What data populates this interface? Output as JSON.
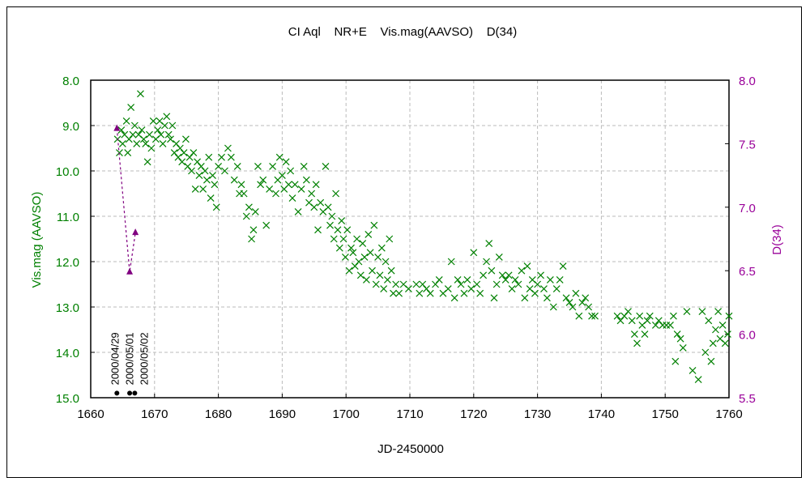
{
  "chart_data": {
    "type": "scatter",
    "title": "CI Aql    NR+E    Vis.mag(AAVSO)    D(34)",
    "xlabel": "JD-2450000",
    "ylabel": "Vis.mag (AAVSO)",
    "y2label": "D(34)",
    "xlim": [
      1660,
      1760
    ],
    "ylim": [
      8.0,
      15.0
    ],
    "y2lim": [
      8.0,
      5.5
    ],
    "xticks": [
      "1660",
      "1670",
      "1680",
      "1690",
      "1700",
      "1710",
      "1720",
      "1730",
      "1740",
      "1750",
      "1760"
    ],
    "yticks": [
      "8.0",
      "9.0",
      "10.0",
      "11.0",
      "12.0",
      "13.0",
      "14.0",
      "15.0"
    ],
    "y2ticks": [
      "8.0",
      "7.5",
      "7.0",
      "6.5",
      "6.0",
      "5.5"
    ],
    "grid": true,
    "colors": {
      "vis": "#008000",
      "d34": "#800080",
      "dates": "#000000",
      "y2axis": "#990099"
    },
    "series": [
      {
        "name": "Vis.mag (AAVSO)",
        "axis": "left",
        "marker": "x",
        "points": [
          [
            1664.2,
            9.3
          ],
          [
            1664.5,
            9.6
          ],
          [
            1664.8,
            9.1
          ],
          [
            1665,
            9.4
          ],
          [
            1665.3,
            9.2
          ],
          [
            1665.6,
            8.9
          ],
          [
            1665.8,
            9.6
          ],
          [
            1666,
            9.3
          ],
          [
            1666.3,
            8.6
          ],
          [
            1666.6,
            9.2
          ],
          [
            1666.9,
            9.0
          ],
          [
            1667.2,
            9.4
          ],
          [
            1667.5,
            9.2
          ],
          [
            1667.8,
            8.3
          ],
          [
            1668,
            9.1
          ],
          [
            1668.3,
            9.3
          ],
          [
            1668.6,
            9.4
          ],
          [
            1668.9,
            9.8
          ],
          [
            1669.2,
            9.2
          ],
          [
            1669.5,
            9.5
          ],
          [
            1669.8,
            8.9
          ],
          [
            1670.2,
            9.3
          ],
          [
            1670.5,
            9.1
          ],
          [
            1670.8,
            8.9
          ],
          [
            1671,
            9.2
          ],
          [
            1671.3,
            9.4
          ],
          [
            1671.6,
            9.0
          ],
          [
            1671.9,
            8.8
          ],
          [
            1672.2,
            9.2
          ],
          [
            1672.5,
            9.3
          ],
          [
            1672.8,
            9.0
          ],
          [
            1673.1,
            9.6
          ],
          [
            1673.4,
            9.4
          ],
          [
            1673.7,
            9.7
          ],
          [
            1674,
            9.5
          ],
          [
            1674.3,
            9.8
          ],
          [
            1674.6,
            9.6
          ],
          [
            1674.9,
            9.3
          ],
          [
            1675.2,
            9.9
          ],
          [
            1675.5,
            9.7
          ],
          [
            1675.8,
            10.0
          ],
          [
            1676.1,
            9.6
          ],
          [
            1676.4,
            10.4
          ],
          [
            1676.7,
            9.8
          ],
          [
            1677,
            10.1
          ],
          [
            1677.3,
            9.9
          ],
          [
            1677.6,
            10.4
          ],
          [
            1677.9,
            10.0
          ],
          [
            1678.2,
            10.2
          ],
          [
            1678.5,
            9.7
          ],
          [
            1678.8,
            10.6
          ],
          [
            1679.1,
            10.1
          ],
          [
            1679.4,
            10.3
          ],
          [
            1679.7,
            10.8
          ],
          [
            1680,
            9.9
          ],
          [
            1680.5,
            9.7
          ],
          [
            1681,
            10.0
          ],
          [
            1681.5,
            9.5
          ],
          [
            1682,
            9.7
          ],
          [
            1682.5,
            10.2
          ],
          [
            1683,
            9.9
          ],
          [
            1683.3,
            10.5
          ],
          [
            1683.6,
            10.3
          ],
          [
            1684,
            10.5
          ],
          [
            1684.4,
            11.0
          ],
          [
            1684.8,
            10.8
          ],
          [
            1685.2,
            11.5
          ],
          [
            1685.5,
            11.3
          ],
          [
            1685.8,
            10.9
          ],
          [
            1686.2,
            9.9
          ],
          [
            1686.6,
            10.3
          ],
          [
            1687,
            10.2
          ],
          [
            1687.5,
            11.2
          ],
          [
            1688,
            10.4
          ],
          [
            1688.5,
            9.9
          ],
          [
            1689,
            10.5
          ],
          [
            1689.3,
            10.2
          ],
          [
            1689.6,
            9.7
          ],
          [
            1690,
            10.1
          ],
          [
            1690.3,
            10.4
          ],
          [
            1690.6,
            9.8
          ],
          [
            1691,
            10.3
          ],
          [
            1691.3,
            10.0
          ],
          [
            1691.6,
            10.6
          ],
          [
            1692,
            10.3
          ],
          [
            1692.5,
            10.9
          ],
          [
            1693,
            10.4
          ],
          [
            1693.4,
            9.9
          ],
          [
            1693.8,
            10.2
          ],
          [
            1694.2,
            10.7
          ],
          [
            1694.6,
            10.5
          ],
          [
            1695,
            10.8
          ],
          [
            1695.3,
            10.3
          ],
          [
            1695.6,
            11.3
          ],
          [
            1696,
            10.7
          ],
          [
            1696.4,
            10.9
          ],
          [
            1696.8,
            9.9
          ],
          [
            1697.2,
            10.8
          ],
          [
            1697.5,
            11.2
          ],
          [
            1697.8,
            11.0
          ],
          [
            1698.1,
            11.5
          ],
          [
            1698.4,
            10.5
          ],
          [
            1698.7,
            11.3
          ],
          [
            1699,
            11.7
          ],
          [
            1699.3,
            11.1
          ],
          [
            1699.6,
            11.5
          ],
          [
            1699.9,
            11.9
          ],
          [
            1700.2,
            11.3
          ],
          [
            1700.5,
            12.2
          ],
          [
            1700.8,
            11.7
          ],
          [
            1701.1,
            11.8
          ],
          [
            1701.4,
            12.1
          ],
          [
            1701.7,
            11.5
          ],
          [
            1702,
            12.0
          ],
          [
            1702.3,
            12.3
          ],
          [
            1702.6,
            11.6
          ],
          [
            1702.9,
            11.9
          ],
          [
            1703.2,
            12.4
          ],
          [
            1703.5,
            11.4
          ],
          [
            1703.8,
            11.8
          ],
          [
            1704.1,
            12.2
          ],
          [
            1704.4,
            11.2
          ],
          [
            1704.7,
            12.5
          ],
          [
            1705,
            11.9
          ],
          [
            1705.3,
            12.3
          ],
          [
            1705.6,
            11.7
          ],
          [
            1705.9,
            12.6
          ],
          [
            1706.2,
            12.0
          ],
          [
            1706.5,
            12.4
          ],
          [
            1706.8,
            11.5
          ],
          [
            1707.1,
            12.2
          ],
          [
            1707.4,
            12.7
          ],
          [
            1707.8,
            12.5
          ],
          [
            1708.3,
            12.7
          ],
          [
            1709,
            12.5
          ],
          [
            1709.8,
            12.6
          ],
          [
            1711,
            12.5
          ],
          [
            1711.5,
            12.7
          ],
          [
            1712,
            12.5
          ],
          [
            1712.6,
            12.6
          ],
          [
            1713.2,
            12.7
          ],
          [
            1714,
            12.5
          ],
          [
            1714.6,
            12.4
          ],
          [
            1715.2,
            12.7
          ],
          [
            1716,
            12.6
          ],
          [
            1716.5,
            12.0
          ],
          [
            1717,
            12.8
          ],
          [
            1717.5,
            12.4
          ],
          [
            1718,
            12.5
          ],
          [
            1718.5,
            12.7
          ],
          [
            1719,
            12.4
          ],
          [
            1719.6,
            12.6
          ],
          [
            1720,
            11.8
          ],
          [
            1720.5,
            12.5
          ],
          [
            1721,
            12.7
          ],
          [
            1721.5,
            12.3
          ],
          [
            1722,
            12.0
          ],
          [
            1722.4,
            11.6
          ],
          [
            1722.8,
            12.2
          ],
          [
            1723.2,
            12.8
          ],
          [
            1723.6,
            12.5
          ],
          [
            1724,
            11.9
          ],
          [
            1724.5,
            12.3
          ],
          [
            1725,
            12.4
          ],
          [
            1725.5,
            12.3
          ],
          [
            1726,
            12.6
          ],
          [
            1726.5,
            12.4
          ],
          [
            1727,
            12.5
          ],
          [
            1727.5,
            12.2
          ],
          [
            1728,
            12.8
          ],
          [
            1728.4,
            12.1
          ],
          [
            1728.8,
            12.6
          ],
          [
            1729.2,
            12.4
          ],
          [
            1729.6,
            12.7
          ],
          [
            1730,
            12.5
          ],
          [
            1730.5,
            12.3
          ],
          [
            1731,
            12.6
          ],
          [
            1731.5,
            12.8
          ],
          [
            1732,
            12.4
          ],
          [
            1732.5,
            13.0
          ],
          [
            1733,
            12.6
          ],
          [
            1733.5,
            12.4
          ],
          [
            1734,
            12.1
          ],
          [
            1734.5,
            12.8
          ],
          [
            1735,
            12.9
          ],
          [
            1735.5,
            13.0
          ],
          [
            1736,
            12.7
          ],
          [
            1736.5,
            13.2
          ],
          [
            1737,
            12.9
          ],
          [
            1737.5,
            12.8
          ],
          [
            1738,
            13.0
          ],
          [
            1738.5,
            13.2
          ],
          [
            1739,
            13.2
          ],
          [
            1742.5,
            13.2
          ],
          [
            1743,
            13.3
          ],
          [
            1743.6,
            13.2
          ],
          [
            1744.2,
            13.1
          ],
          [
            1744.8,
            13.3
          ],
          [
            1745.2,
            13.6
          ],
          [
            1745.6,
            13.8
          ],
          [
            1746,
            13.2
          ],
          [
            1746.4,
            13.4
          ],
          [
            1746.8,
            13.6
          ],
          [
            1747.2,
            13.3
          ],
          [
            1747.6,
            13.2
          ],
          [
            1748.5,
            13.4
          ],
          [
            1749,
            13.3
          ],
          [
            1749.6,
            13.4
          ],
          [
            1750.2,
            13.4
          ],
          [
            1750.8,
            13.4
          ],
          [
            1751.3,
            13.2
          ],
          [
            1751.6,
            14.2
          ],
          [
            1751.9,
            13.6
          ],
          [
            1752.4,
            13.7
          ],
          [
            1752.8,
            13.9
          ],
          [
            1753.4,
            13.1
          ],
          [
            1754.3,
            14.4
          ],
          [
            1755.2,
            14.6
          ],
          [
            1755.8,
            13.1
          ],
          [
            1756.3,
            14.0
          ],
          [
            1756.8,
            13.3
          ],
          [
            1757.2,
            14.2
          ],
          [
            1757.5,
            13.8
          ],
          [
            1757.9,
            13.5
          ],
          [
            1758.3,
            13.1
          ],
          [
            1758.6,
            13.7
          ],
          [
            1759,
            13.4
          ],
          [
            1759.4,
            13.8
          ],
          [
            1759.8,
            13.6
          ],
          [
            1760,
            13.2
          ]
        ]
      },
      {
        "name": "D(34)",
        "axis": "right",
        "marker": "triangle",
        "line": "dashed",
        "points": [
          [
            1664.1,
            7.62
          ],
          [
            1666.1,
            6.49
          ],
          [
            1667.0,
            6.8
          ]
        ]
      }
    ],
    "date_markers": [
      {
        "x": 1664.1,
        "label": "2000/04/29"
      },
      {
        "x": 1666.1,
        "label": "2000/05/01"
      },
      {
        "x": 1666.9,
        "label": "2000/05/02"
      }
    ],
    "date_marker_mag": 14.9
  }
}
